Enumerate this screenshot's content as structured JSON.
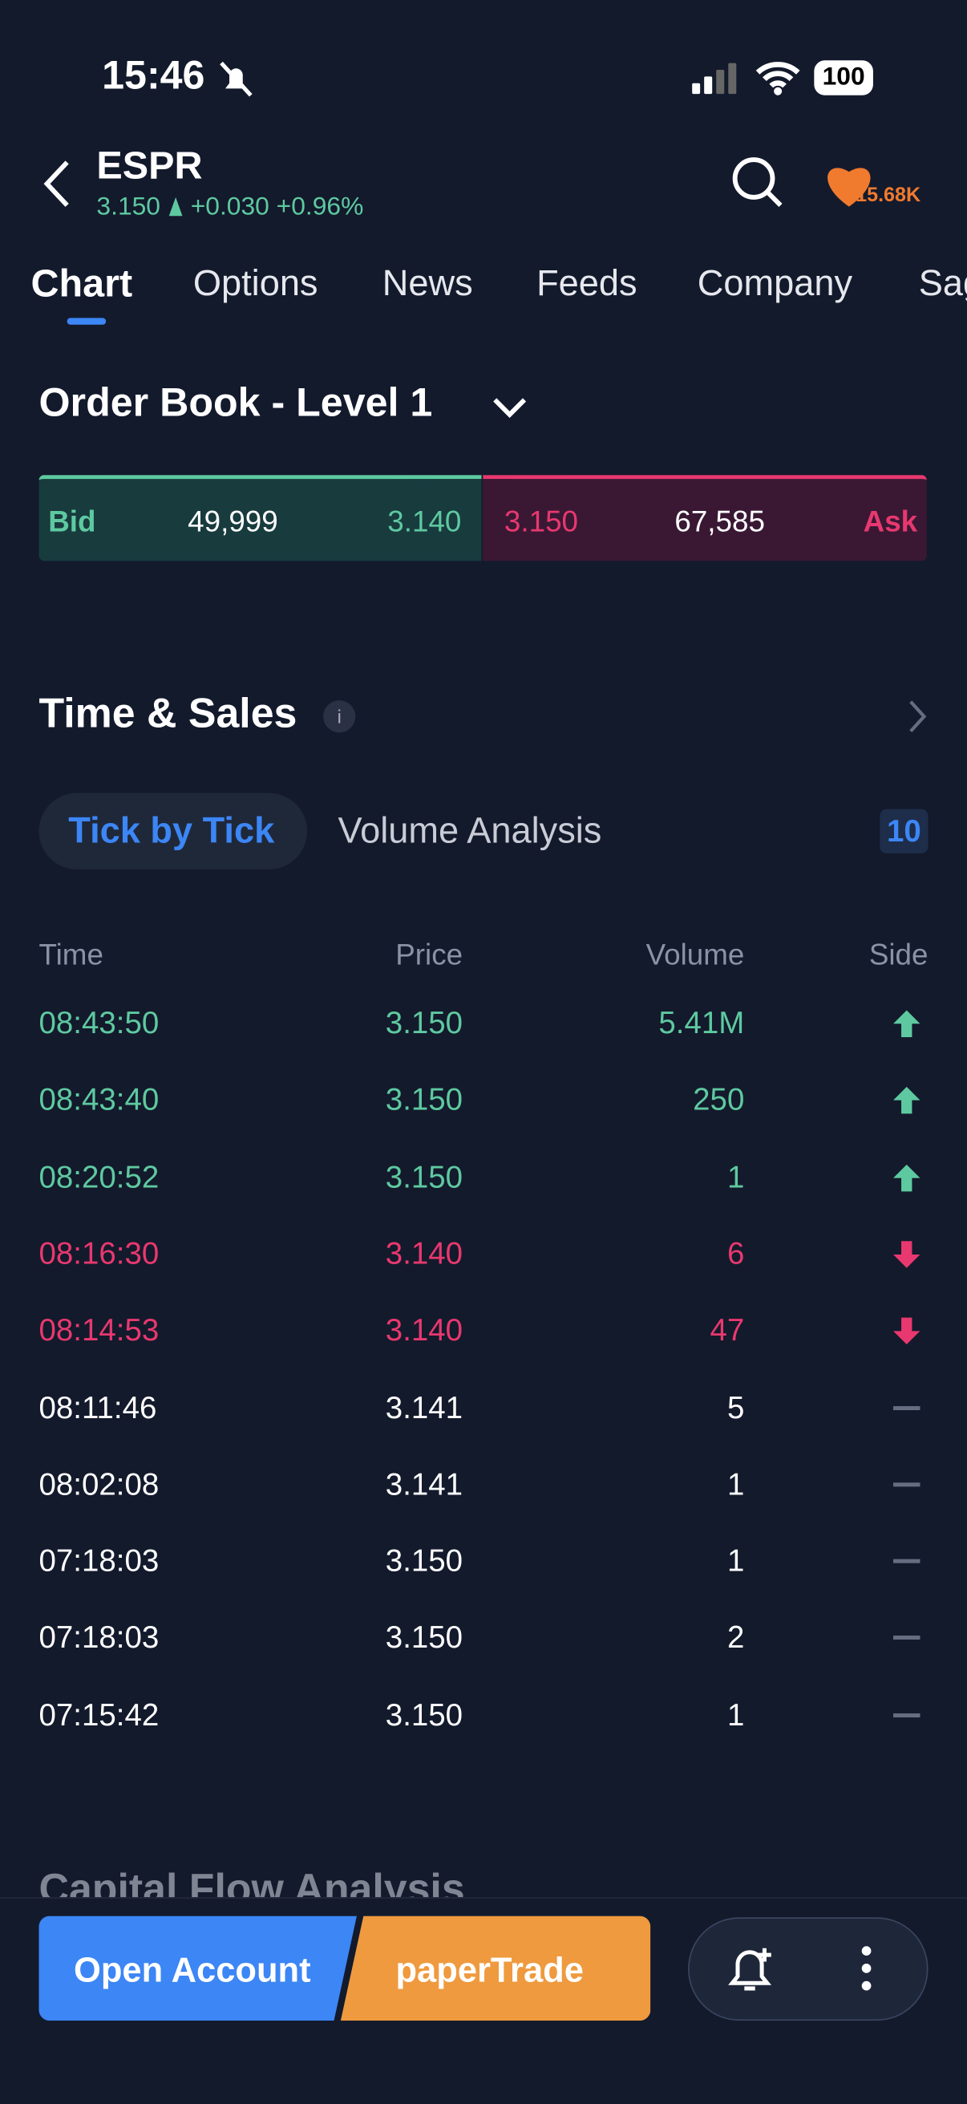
{
  "status": {
    "time": "15:46",
    "battery": "100"
  },
  "header": {
    "symbol": "ESPR",
    "price": "3.150",
    "change": "+0.030",
    "change_percent": "+0.96%",
    "watchers": "15.68K"
  },
  "tabs": [
    "Chart",
    "Options",
    "News",
    "Feeds",
    "Company",
    "Sag"
  ],
  "order_book": {
    "title": "Order Book - Level 1",
    "bid_label": "Bid",
    "bid_size": "49,999",
    "bid_price": "3.140",
    "ask_price": "3.150",
    "ask_size": "67,585",
    "ask_label": "Ask"
  },
  "time_sales": {
    "title": "Time & Sales",
    "subtabs": [
      "Tick by Tick",
      "Volume Analysis"
    ],
    "count": "10",
    "columns": [
      "Time",
      "Price",
      "Volume",
      "Side"
    ],
    "rows": [
      {
        "time": "08:43:50",
        "price": "3.150",
        "volume": "5.41M",
        "side": "up"
      },
      {
        "time": "08:43:40",
        "price": "3.150",
        "volume": "250",
        "side": "up"
      },
      {
        "time": "08:20:52",
        "price": "3.150",
        "volume": "1",
        "side": "up"
      },
      {
        "time": "08:16:30",
        "price": "3.140",
        "volume": "6",
        "side": "down"
      },
      {
        "time": "08:14:53",
        "price": "3.140",
        "volume": "47",
        "side": "down"
      },
      {
        "time": "08:11:46",
        "price": "3.141",
        "volume": "5",
        "side": "neutral"
      },
      {
        "time": "08:02:08",
        "price": "3.141",
        "volume": "1",
        "side": "neutral"
      },
      {
        "time": "07:18:03",
        "price": "3.150",
        "volume": "1",
        "side": "neutral"
      },
      {
        "time": "07:18:03",
        "price": "3.150",
        "volume": "2",
        "side": "neutral"
      },
      {
        "time": "07:15:42",
        "price": "3.150",
        "volume": "1",
        "side": "neutral"
      }
    ]
  },
  "capital_flow": {
    "title": "Capital Flow Analysis"
  },
  "footer": {
    "open_account": "Open Account",
    "paper_trade": "paperTrade"
  }
}
